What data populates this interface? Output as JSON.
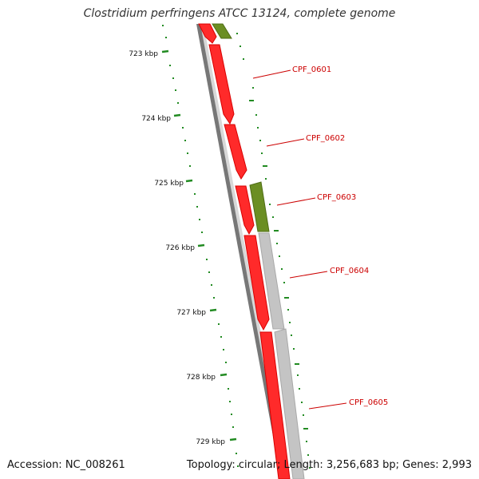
{
  "title": "Clostridium perfringens ATCC 13124, complete genome",
  "footer": {
    "accession": "Accession: NC_008261",
    "summary": "Topology: circular; Length: 3,256,683 bp; Genes: 2,993"
  },
  "colors": {
    "forward_gene": "#ff0000",
    "reverse_gene": "#6b8e23",
    "gray_feature": "#bdbdbd",
    "backbone": "#7a7a7a",
    "tick": "#228b22",
    "label": "#cc0000"
  },
  "scale": {
    "unit": "kbp",
    "ticks": [
      "723 kbp",
      "724 kbp",
      "725 kbp",
      "726 kbp",
      "727 kbp",
      "728 kbp",
      "729 kbp"
    ]
  },
  "gene_labels": [
    "CPF_0601",
    "CPF_0602",
    "CPF_0603",
    "CPF_0604",
    "CPF_0605"
  ]
}
